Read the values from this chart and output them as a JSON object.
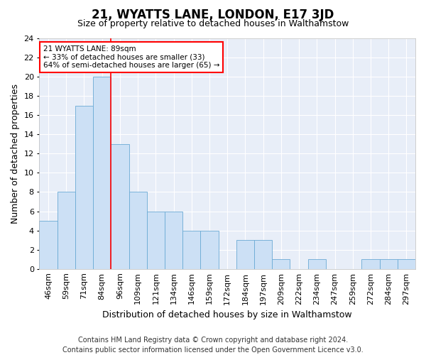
{
  "title": "21, WYATTS LANE, LONDON, E17 3JD",
  "subtitle": "Size of property relative to detached houses in Walthamstow",
  "xlabel": "Distribution of detached houses by size in Walthamstow",
  "ylabel": "Number of detached properties",
  "footer_line1": "Contains HM Land Registry data © Crown copyright and database right 2024.",
  "footer_line2": "Contains public sector information licensed under the Open Government Licence v3.0.",
  "categories": [
    "46sqm",
    "59sqm",
    "71sqm",
    "84sqm",
    "96sqm",
    "109sqm",
    "121sqm",
    "134sqm",
    "146sqm",
    "159sqm",
    "172sqm",
    "184sqm",
    "197sqm",
    "209sqm",
    "222sqm",
    "234sqm",
    "247sqm",
    "259sqm",
    "272sqm",
    "284sqm",
    "297sqm"
  ],
  "values": [
    5,
    8,
    17,
    20,
    13,
    8,
    6,
    6,
    4,
    4,
    0,
    3,
    3,
    1,
    0,
    1,
    0,
    0,
    1,
    1,
    1
  ],
  "bar_color": "#cce0f5",
  "bar_edge_color": "#6aaad4",
  "ylim": [
    0,
    24
  ],
  "yticks": [
    0,
    2,
    4,
    6,
    8,
    10,
    12,
    14,
    16,
    18,
    20,
    22,
    24
  ],
  "red_line_index": 3,
  "annotation_line1": "21 WYATTS LANE: 89sqm",
  "annotation_line2": "← 33% of detached houses are smaller (33)",
  "annotation_line3": "64% of semi-detached houses are larger (65) →",
  "bg_color": "#ffffff",
  "plot_bg_color": "#e8eef8",
  "grid_color": "#ffffff",
  "title_fontsize": 12,
  "subtitle_fontsize": 9,
  "axis_label_fontsize": 9,
  "tick_fontsize": 8,
  "footer_fontsize": 7
}
